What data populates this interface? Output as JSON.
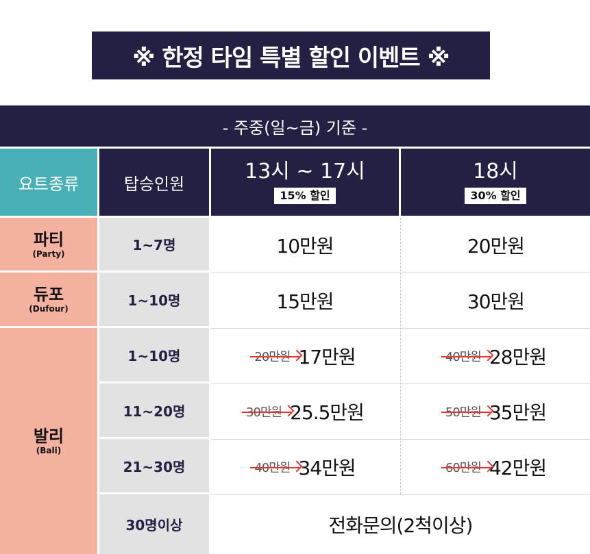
{
  "banner": "※ 한정 타임 특별 할인 이벤트 ※",
  "subheading": "- 주중(일~금) 기준 -",
  "headers": {
    "type": "요트종류",
    "capacity": "탑승인원",
    "slot1_time": "13시 ~ 17시",
    "slot1_discount": "15% 할인",
    "slot2_time": "18시",
    "slot2_discount": "30% 할인"
  },
  "yachts": {
    "party": {
      "name": "파티",
      "en": "(Party)"
    },
    "dufour": {
      "name": "듀포",
      "en": "(Dufour)"
    },
    "bali": {
      "name": "발리",
      "en": "(Bali)"
    }
  },
  "rows": [
    {
      "capacity": "1~7명",
      "slot1_old": "",
      "slot1": "10만원",
      "slot2_old": "",
      "slot2": "20만원"
    },
    {
      "capacity": "1~10명",
      "slot1_old": "",
      "slot1": "15만원",
      "slot2_old": "",
      "slot2": "30만원"
    },
    {
      "capacity": "1~10명",
      "slot1_old": "20만원",
      "slot1": "17만원",
      "slot2_old": "40만원",
      "slot2": "28만원"
    },
    {
      "capacity": "11~20명",
      "slot1_old": "30만원",
      "slot1": "25.5만원",
      "slot2_old": "50만원",
      "slot2": "35만원"
    },
    {
      "capacity": "21~30명",
      "slot1_old": "40만원",
      "slot1": "34만원",
      "slot2_old": "60만원",
      "slot2": "42만원"
    },
    {
      "capacity": "30명이상",
      "merged": "전화문의(2척이상)"
    }
  ],
  "colors": {
    "navy": "#232043",
    "teal": "#49b1b5",
    "salmon": "#f5b2a1",
    "gray": "#e2e2e2",
    "strike_red": "#e8342e"
  }
}
